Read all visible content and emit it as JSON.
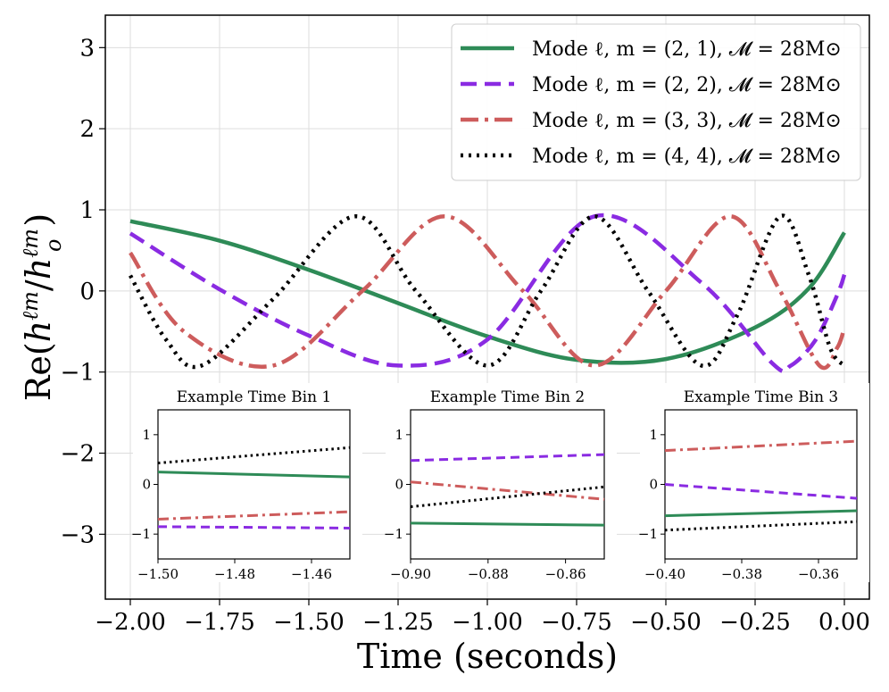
{
  "chart_data": {
    "type": "line",
    "title": "",
    "xlabel": "Time (seconds)",
    "ylabel": "Re(h^ℓm / h_o^ℓm)",
    "xlim": [
      -2.07,
      0.07
    ],
    "ylim": [
      -3.8,
      3.4
    ],
    "xticks": [
      -2.0,
      -1.75,
      -1.5,
      -1.25,
      -1.0,
      -0.75,
      -0.5,
      -0.25,
      0.0
    ],
    "xtick_labels": [
      "−2.00",
      "−1.75",
      "−1.50",
      "−1.25",
      "−1.00",
      "−0.75",
      "−0.50",
      "−0.25",
      "0.00"
    ],
    "yticks": [
      -3,
      -2,
      -1,
      0,
      1,
      2,
      3
    ],
    "ytick_labels": [
      "−3",
      "−2",
      "−1",
      "0",
      "1",
      "2",
      "3"
    ],
    "grid": true,
    "legend_position": "top-right",
    "series": [
      {
        "name": "Mode ℓ, m = (2, 1), 𝓜 = 28M⊙",
        "color": "#2e8b57",
        "style": "solid",
        "x": [
          -2.0,
          -1.75,
          -1.5,
          -1.25,
          -1.0,
          -0.75,
          -0.5,
          -0.25,
          -0.1,
          0.0
        ],
        "y": [
          0.86,
          0.62,
          0.26,
          -0.15,
          -0.56,
          -0.85,
          -0.84,
          -0.45,
          0.03,
          0.72
        ]
      },
      {
        "name": "Mode ℓ, m = (2, 2), 𝓜 = 28M⊙",
        "color": "#8a2be2",
        "style": "dashed",
        "x": [
          -2.0,
          -1.75,
          -1.5,
          -1.25,
          -1.0,
          -0.7,
          -0.4,
          -0.2,
          -0.15,
          -0.08,
          -0.02,
          0.0
        ],
        "y": [
          0.71,
          0.02,
          -0.55,
          -0.92,
          -0.6,
          0.92,
          0.1,
          -0.9,
          -0.92,
          -0.6,
          -0.05,
          0.2
        ]
      },
      {
        "name": "Mode ℓ, m = (3, 3), 𝓜 = 28M⊙",
        "color": "#cd5c5c",
        "style": "dashdot",
        "x": [
          -2.0,
          -1.85,
          -1.6,
          -1.35,
          -1.12,
          -0.9,
          -0.7,
          -0.5,
          -0.32,
          -0.18,
          -0.07,
          -0.02,
          0.0
        ],
        "y": [
          0.47,
          -0.5,
          -0.92,
          0.0,
          0.92,
          0.0,
          -0.92,
          0.0,
          0.92,
          0.0,
          -0.92,
          -0.7,
          -0.45
        ]
      },
      {
        "name": "Mode ℓ, m = (4, 4), 𝓜 = 28M⊙",
        "color": "#000000",
        "style": "dotted",
        "x": [
          -2.0,
          -1.9,
          -1.8,
          -1.6,
          -1.37,
          -1.2,
          -1.0,
          -0.85,
          -0.7,
          -0.55,
          -0.4,
          -0.3,
          -0.18,
          -0.1,
          -0.04,
          0.0
        ],
        "y": [
          0.19,
          -0.6,
          -0.92,
          -0.1,
          0.92,
          0.0,
          -0.92,
          0.0,
          0.92,
          0.0,
          -0.92,
          -0.3,
          0.92,
          0.2,
          -0.7,
          -0.92
        ]
      }
    ],
    "insets": [
      {
        "title": "Example Time Bin 1",
        "xlim": [
          -1.5,
          -1.45
        ],
        "ylim": [
          -1.5,
          1.5
        ],
        "xticks": [
          -1.5,
          -1.48,
          -1.46
        ],
        "xtick_labels": [
          "−1.50",
          "−1.48",
          "−1.46"
        ],
        "yticks": [
          -1,
          0,
          1
        ],
        "ytick_labels": [
          "−1",
          "0",
          "1"
        ],
        "series": [
          {
            "name": "(2,1)",
            "y": [
              0.25,
              0.15
            ]
          },
          {
            "name": "(2,2)",
            "y": [
              -0.85,
              -0.88
            ]
          },
          {
            "name": "(3,3)",
            "y": [
              -0.7,
              -0.55
            ]
          },
          {
            "name": "(4,4)",
            "y": [
              0.43,
              0.74
            ]
          }
        ]
      },
      {
        "title": "Example Time Bin 2",
        "xlim": [
          -0.9,
          -0.85
        ],
        "ylim": [
          -1.5,
          1.5
        ],
        "xticks": [
          -0.9,
          -0.88,
          -0.86
        ],
        "xtick_labels": [
          "−0.90",
          "−0.88",
          "−0.86"
        ],
        "yticks": [
          -1,
          0,
          1
        ],
        "ytick_labels": [
          "−1",
          "0",
          "1"
        ],
        "series": [
          {
            "name": "(2,1)",
            "y": [
              -0.78,
              -0.82
            ]
          },
          {
            "name": "(2,2)",
            "y": [
              0.48,
              0.6
            ]
          },
          {
            "name": "(3,3)",
            "y": [
              0.05,
              -0.3
            ]
          },
          {
            "name": "(4,4)",
            "y": [
              -0.45,
              -0.05
            ]
          }
        ]
      },
      {
        "title": "Example Time Bin 3",
        "xlim": [
          -0.4,
          -0.35
        ],
        "ylim": [
          -1.5,
          1.5
        ],
        "xticks": [
          -0.4,
          -0.38,
          -0.36
        ],
        "xtick_labels": [
          "−0.40",
          "−0.38",
          "−0.36"
        ],
        "yticks": [
          -1,
          0,
          1
        ],
        "ytick_labels": [
          "−1",
          "0",
          "1"
        ],
        "series": [
          {
            "name": "(2,1)",
            "y": [
              -0.63,
              -0.53
            ]
          },
          {
            "name": "(2,2)",
            "y": [
              0.0,
              -0.28
            ]
          },
          {
            "name": "(3,3)",
            "y": [
              0.68,
              0.87
            ]
          },
          {
            "name": "(4,4)",
            "y": [
              -0.92,
              -0.75
            ]
          }
        ]
      }
    ]
  }
}
